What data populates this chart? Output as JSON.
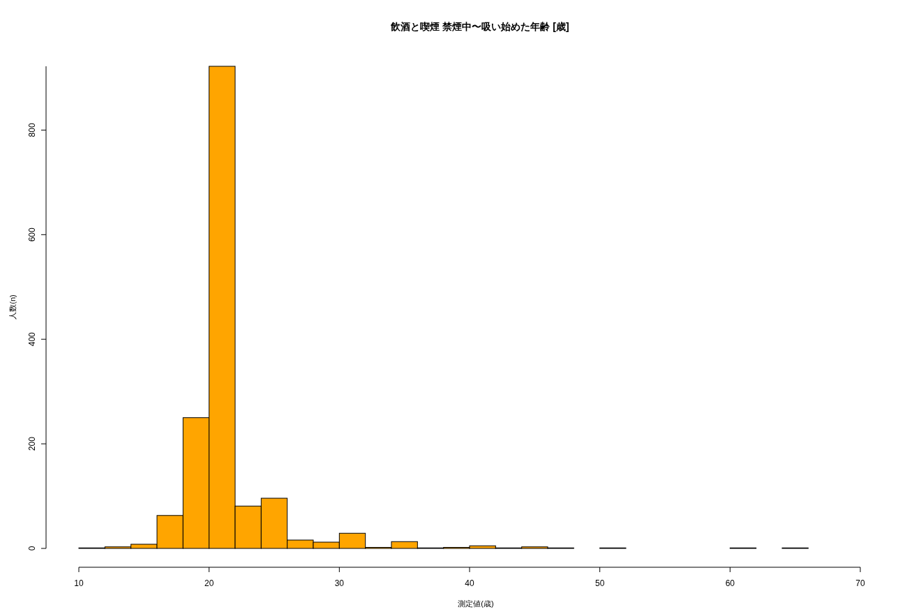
{
  "chart_data": {
    "type": "histogram",
    "title": "飲酒と喫煙 禁煙中〜吸い始めた年齢 [歳]",
    "xlabel": "測定値(歳)",
    "ylabel": "人数(n)",
    "color": "#ffa500",
    "bins": [
      10,
      12,
      14,
      16,
      18,
      20,
      22,
      24,
      26,
      28,
      30,
      32,
      34,
      36,
      38,
      40,
      42,
      44,
      46,
      48,
      50,
      52,
      54,
      56,
      58,
      60,
      62,
      64,
      66
    ],
    "values": [
      1,
      3,
      8,
      63,
      250,
      922,
      81,
      96,
      16,
      12,
      29,
      2,
      13,
      1,
      2,
      5,
      1,
      3,
      1,
      0,
      1,
      0,
      0,
      0,
      0,
      1,
      0,
      1
    ],
    "xlim": [
      10,
      70
    ],
    "xticks": [
      10,
      20,
      30,
      40,
      50,
      60,
      70
    ],
    "ylim": [
      0,
      922
    ],
    "yticks": [
      0,
      200,
      400,
      600,
      800
    ],
    "grid": false
  }
}
